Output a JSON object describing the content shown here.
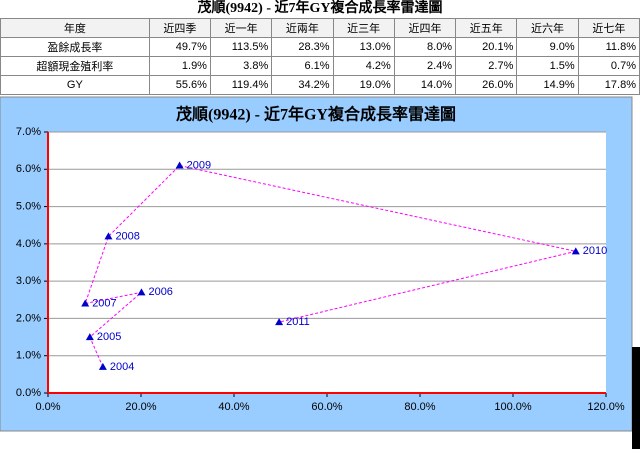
{
  "header": {
    "title": "茂順(9942) - 近7年GY複合成長率雷達圖"
  },
  "table": {
    "columns": [
      "年度",
      "近四季",
      "近一年",
      "近兩年",
      "近三年",
      "近四年",
      "近五年",
      "近六年",
      "近七年"
    ],
    "rows": [
      [
        "盈餘成長率",
        "49.7%",
        "113.5%",
        "28.3%",
        "13.0%",
        "8.0%",
        "20.1%",
        "9.0%",
        "11.8%"
      ],
      [
        "超額現金殖利率",
        "1.9%",
        "3.8%",
        "6.1%",
        "4.2%",
        "2.4%",
        "2.7%",
        "1.5%",
        "0.7%"
      ],
      [
        "GY",
        "55.6%",
        "119.4%",
        "34.2%",
        "19.0%",
        "14.0%",
        "26.0%",
        "14.9%",
        "17.8%"
      ]
    ]
  },
  "chart_data": {
    "type": "scatter",
    "title": "茂順(9942) - 近7年GY複合成長率雷達圖",
    "labels": [
      "2004",
      "2005",
      "2006",
      "2007",
      "2008",
      "2009",
      "2010",
      "2011"
    ],
    "x": [
      11.8,
      9.0,
      20.1,
      8.0,
      13.0,
      28.3,
      113.5,
      49.7
    ],
    "y": [
      0.7,
      1.5,
      2.7,
      2.4,
      4.2,
      6.1,
      3.8,
      1.9
    ],
    "xlim": [
      0,
      120
    ],
    "ylim": [
      0,
      7
    ],
    "xticks": [
      {
        "value": 0,
        "label": "0.0%"
      },
      {
        "value": 20,
        "label": "20.0%"
      },
      {
        "value": 40,
        "label": "40.0%"
      },
      {
        "value": 60,
        "label": "60.0%"
      },
      {
        "value": 80,
        "label": "80.0%"
      },
      {
        "value": 100,
        "label": "100.0%"
      },
      {
        "value": 120,
        "label": "120.0%"
      }
    ],
    "yticks": [
      {
        "value": 0,
        "label": "0.0%"
      },
      {
        "value": 1,
        "label": "1.0%"
      },
      {
        "value": 2,
        "label": "2.0%"
      },
      {
        "value": 3,
        "label": "3.0%"
      },
      {
        "value": 4,
        "label": "4.0%"
      },
      {
        "value": 5,
        "label": "5.0%"
      },
      {
        "value": 6,
        "label": "6.0%"
      },
      {
        "value": 7,
        "label": "7.0%"
      }
    ],
    "grid": true,
    "color": "#0000cc",
    "line_color": "#ff00ff",
    "axis_color": "#ff0000"
  }
}
